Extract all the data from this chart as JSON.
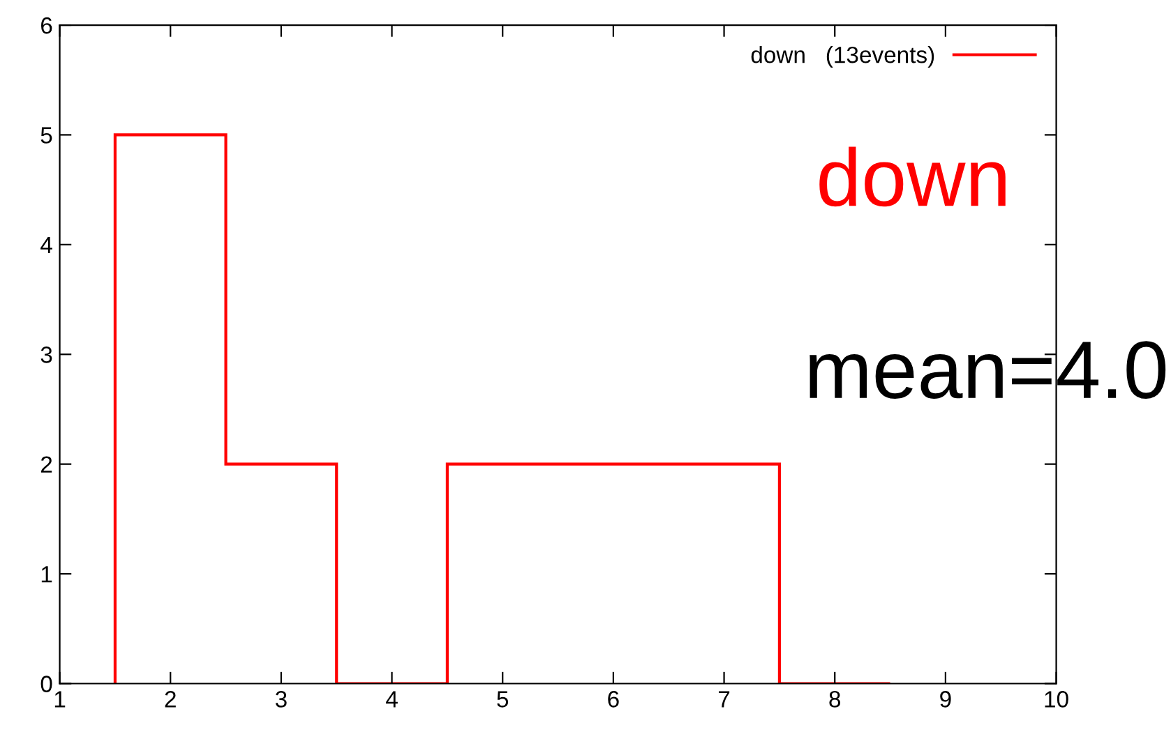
{
  "chart_data": {
    "type": "histogram",
    "bins": [
      1.5,
      2.5,
      3.5,
      4.5,
      5.5,
      6.5,
      7.5,
      8.5
    ],
    "series": [
      {
        "name": "down   (13events)",
        "color": "#ff0000",
        "values": [
          5,
          2,
          0,
          2,
          2,
          2,
          0
        ]
      }
    ],
    "xlim": [
      1,
      10
    ],
    "xticks": [
      1,
      2,
      3,
      4,
      5,
      6,
      7,
      8,
      9,
      10
    ],
    "ylim": [
      0,
      6
    ],
    "yticks": [
      0,
      1,
      2,
      3,
      4,
      5,
      6
    ],
    "grid": false,
    "legend": "top right",
    "annotations": [
      "down",
      "mean=4.0"
    ]
  }
}
